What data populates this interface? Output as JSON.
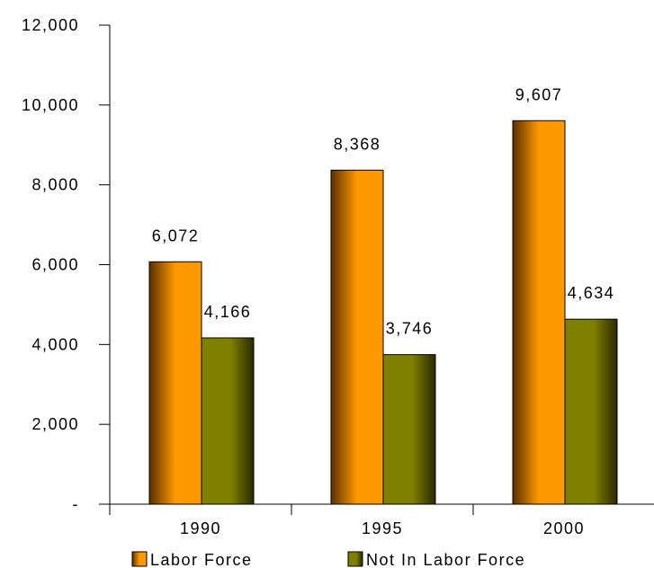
{
  "chart_data": {
    "type": "bar",
    "title": "",
    "xlabel": "",
    "ylabel": "",
    "categories": [
      "1990",
      "1995",
      "2000"
    ],
    "series": [
      {
        "name": "Labor Force",
        "values": [
          6072,
          8368,
          9607
        ],
        "value_labels": [
          "6,072",
          "8,368",
          "9,607"
        ],
        "color": "#ff9900",
        "dark_color": "#5a3000"
      },
      {
        "name": "Not In Labor Force",
        "values": [
          4166,
          3746,
          4634
        ],
        "value_labels": [
          "4,166",
          "3,746",
          "4,634"
        ],
        "color": "#808000",
        "dark_color": "#2a2a00"
      }
    ],
    "ylim": [
      0,
      12000
    ],
    "yticks": [
      0,
      2000,
      4000,
      6000,
      8000,
      10000,
      12000
    ],
    "ytick_labels": [
      "-",
      "2,000",
      "4,000",
      "6,000",
      "8,000",
      "10,000",
      "12,000"
    ],
    "grid": false,
    "legend_position": "bottom"
  }
}
